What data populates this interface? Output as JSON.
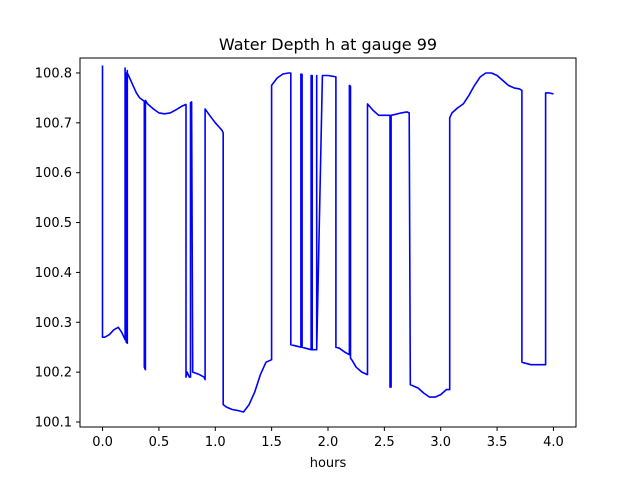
{
  "chart_data": {
    "type": "line",
    "title": "Water Depth h at gauge 99",
    "xlabel": "hours",
    "ylabel": "",
    "xlim": [
      -0.2,
      4.2
    ],
    "ylim": [
      100.09,
      100.83
    ],
    "xticks": [
      0.0,
      0.5,
      1.0,
      1.5,
      2.0,
      2.5,
      3.0,
      3.5,
      4.0
    ],
    "xtick_labels": [
      "0.0",
      "0.5",
      "1.0",
      "1.5",
      "2.0",
      "2.5",
      "3.0",
      "3.5",
      "4.0"
    ],
    "yticks": [
      100.1,
      100.2,
      100.3,
      100.4,
      100.5,
      100.6,
      100.7,
      100.8
    ],
    "ytick_labels": [
      "100.1",
      "100.2",
      "100.3",
      "100.4",
      "100.5",
      "100.6",
      "100.7",
      "100.8"
    ],
    "grid": false,
    "legend": "none",
    "series": [
      {
        "color": "#0000ff",
        "x": [
          0.0,
          0.0,
          0.02,
          0.06,
          0.1,
          0.14,
          0.17,
          0.19,
          0.2,
          0.2,
          0.2,
          0.21,
          0.21,
          0.21,
          0.22,
          0.22,
          0.22,
          0.24,
          0.27,
          0.3,
          0.33,
          0.36,
          0.37,
          0.37,
          0.38,
          0.38,
          0.4,
          0.45,
          0.5,
          0.55,
          0.6,
          0.65,
          0.7,
          0.74,
          0.74,
          0.75,
          0.77,
          0.78,
          0.78,
          0.79,
          0.8,
          0.85,
          0.9,
          0.91,
          0.91,
          0.95,
          1.0,
          1.06,
          1.07,
          1.07,
          1.1,
          1.15,
          1.2,
          1.25,
          1.3,
          1.35,
          1.4,
          1.45,
          1.5,
          1.5,
          1.5,
          1.55,
          1.6,
          1.65,
          1.67,
          1.67,
          1.76,
          1.76,
          1.77,
          1.77,
          1.8,
          1.85,
          1.85,
          1.86,
          1.86,
          1.9,
          1.9,
          1.9,
          1.95,
          2.0,
          2.05,
          2.07,
          2.07,
          2.1,
          2.15,
          2.19,
          2.19,
          2.2,
          2.2,
          2.2,
          2.21,
          2.25,
          2.3,
          2.35,
          2.35,
          2.35,
          2.4,
          2.45,
          2.5,
          2.55,
          2.55,
          2.56,
          2.56,
          2.56,
          2.6,
          2.65,
          2.7,
          2.72,
          2.73,
          2.73,
          2.8,
          2.85,
          2.9,
          2.95,
          3.0,
          3.05,
          3.08,
          3.08,
          3.1,
          3.15,
          3.2,
          3.25,
          3.3,
          3.35,
          3.4,
          3.45,
          3.5,
          3.55,
          3.6,
          3.65,
          3.7,
          3.72,
          3.72,
          3.75,
          3.8,
          3.85,
          3.9,
          3.93,
          3.93,
          3.96,
          4.0
        ],
        "y": [
          100.815,
          100.27,
          100.27,
          100.275,
          100.285,
          100.29,
          100.28,
          100.27,
          100.265,
          100.81,
          100.27,
          100.262,
          100.8,
          100.26,
          100.258,
          100.805,
          100.8,
          100.79,
          100.775,
          100.76,
          100.75,
          100.745,
          100.743,
          100.21,
          100.205,
          100.745,
          100.738,
          100.728,
          100.72,
          100.718,
          100.72,
          100.726,
          100.733,
          100.737,
          100.19,
          100.2,
          100.19,
          100.19,
          100.74,
          100.742,
          100.2,
          100.196,
          100.19,
          100.185,
          100.728,
          100.715,
          100.7,
          100.685,
          100.68,
          100.135,
          100.13,
          100.125,
          100.123,
          100.12,
          100.135,
          100.16,
          100.195,
          100.22,
          100.225,
          100.228,
          100.775,
          100.79,
          100.798,
          100.8,
          100.8,
          100.255,
          100.25,
          100.798,
          100.797,
          100.25,
          100.248,
          100.245,
          100.795,
          100.795,
          100.245,
          100.245,
          100.795,
          100.245,
          100.795,
          100.795,
          100.793,
          100.792,
          100.25,
          100.248,
          100.24,
          100.235,
          100.775,
          100.773,
          100.77,
          100.228,
          100.225,
          100.21,
          100.2,
          100.195,
          100.738,
          100.738,
          100.725,
          100.715,
          100.715,
          100.715,
          100.17,
          100.17,
          100.715,
          100.715,
          100.717,
          100.72,
          100.722,
          100.72,
          100.178,
          100.175,
          100.168,
          100.158,
          100.15,
          100.15,
          100.155,
          100.165,
          100.165,
          100.71,
          100.72,
          100.73,
          100.738,
          100.755,
          100.775,
          100.792,
          100.8,
          100.8,
          100.795,
          100.785,
          100.775,
          100.77,
          100.768,
          100.765,
          100.22,
          100.218,
          100.215,
          100.215,
          100.215,
          100.215,
          100.76,
          100.76,
          100.758
        ]
      }
    ]
  }
}
